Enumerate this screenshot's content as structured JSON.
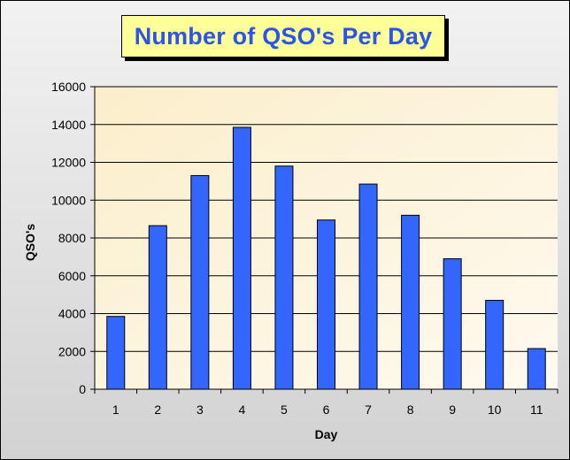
{
  "chart_data": {
    "type": "bar",
    "title": "Number of QSO's Per Day",
    "xlabel": "Day",
    "ylabel": "QSO's",
    "categories": [
      "1",
      "2",
      "3",
      "4",
      "5",
      "6",
      "7",
      "8",
      "9",
      "10",
      "11"
    ],
    "values": [
      3850,
      8650,
      11300,
      13850,
      11800,
      8950,
      10850,
      9200,
      6900,
      4700,
      2150
    ],
    "ylim": [
      0,
      16000
    ],
    "yticks": [
      "0",
      "2000",
      "4000",
      "6000",
      "8000",
      "10000",
      "12000",
      "14000",
      "16000"
    ],
    "grid": true,
    "legend": "none",
    "colors": {
      "bar": "#3366ff",
      "bar_stroke": "#000000",
      "plot_background": "#fdf2d8",
      "title_background": "#ffff99",
      "title_text": "#2a55e8"
    }
  }
}
